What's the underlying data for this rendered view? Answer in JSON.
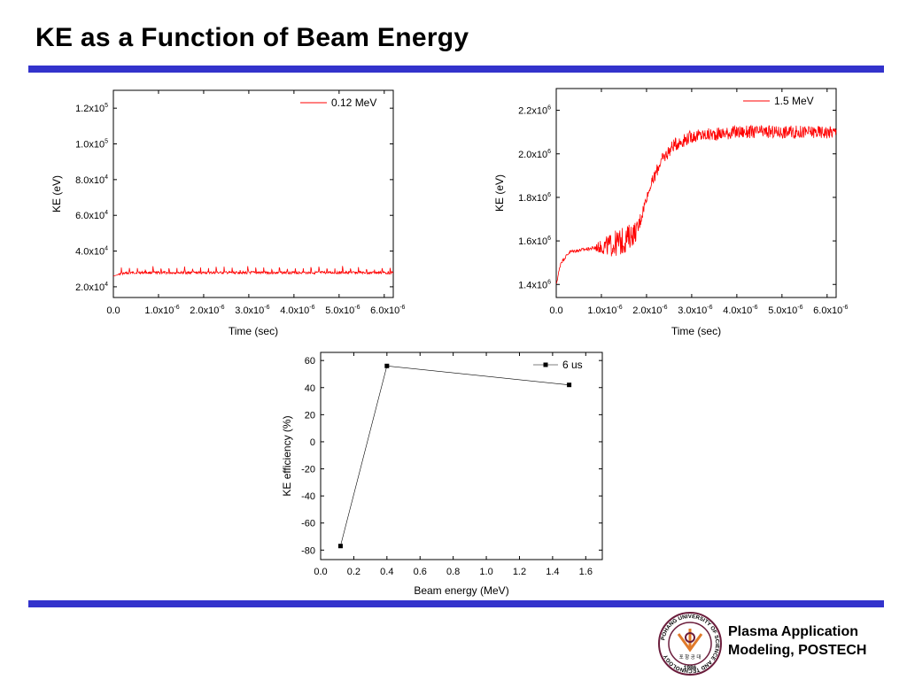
{
  "slide": {
    "title": "KE as a Function of Beam Energy",
    "rule_color": "#3333cc",
    "footer": {
      "line1": "Plasma Application",
      "line2": "Modeling, POSTECH"
    },
    "logo": {
      "ring_text": "POHANG UNIVERSITY OF SCIENCE AND TECHNOLOGY",
      "korean_text": "포 항 공 대",
      "year": "1986",
      "colors": {
        "ring": "#6b1d3c",
        "accent": "#e07a2a"
      }
    }
  },
  "chart_data": [
    {
      "type": "line",
      "xlabel": "Time (sec)",
      "ylabel": "KE (eV)",
      "xlim": [
        0,
        6.2e-06
      ],
      "ylim": [
        14000,
        130000
      ],
      "xticks": [
        {
          "value": 0,
          "mant": "0.0",
          "exp": ""
        },
        {
          "value": 1e-06,
          "mant": "1.0x10",
          "exp": "-6"
        },
        {
          "value": 2e-06,
          "mant": "2.0x10",
          "exp": "-6"
        },
        {
          "value": 3e-06,
          "mant": "3.0x10",
          "exp": "-6"
        },
        {
          "value": 4e-06,
          "mant": "4.0x10",
          "exp": "-6"
        },
        {
          "value": 5e-06,
          "mant": "5.0x10",
          "exp": "-6"
        },
        {
          "value": 6e-06,
          "mant": "6.0x10",
          "exp": "-6"
        }
      ],
      "yticks": [
        {
          "value": 20000,
          "mant": "2.0x10",
          "exp": "4"
        },
        {
          "value": 40000,
          "mant": "4.0x10",
          "exp": "4"
        },
        {
          "value": 60000,
          "mant": "6.0x10",
          "exp": "4"
        },
        {
          "value": 80000,
          "mant": "8.0x10",
          "exp": "4"
        },
        {
          "value": 100000,
          "mant": "1.0x10",
          "exp": "5"
        },
        {
          "value": 120000,
          "mant": "1.2x10",
          "exp": "5"
        }
      ],
      "legend_position": "top-right",
      "series": [
        {
          "name": "0.12 MeV",
          "color": "#ff0000",
          "x": [
            0,
            2e-07,
            4e-07,
            6e-07,
            8e-07,
            1e-06,
            1.5e-06,
            2e-06,
            2.5e-06,
            3e-06,
            3.5e-06,
            4e-06,
            4.5e-06,
            5e-06,
            5.5e-06,
            6e-06,
            6.2e-06
          ],
          "y": [
            26000,
            27500,
            28000,
            28000,
            28000,
            28000,
            28000,
            28000,
            28000,
            28000,
            28000,
            28000,
            28000,
            28000,
            28000,
            28000,
            28000
          ],
          "noise": "periodic spikes to ~31000 and dips to ~25500"
        }
      ]
    },
    {
      "type": "line",
      "xlabel": "Time (sec)",
      "ylabel": "KE (eV)",
      "xlim": [
        0,
        6.2e-06
      ],
      "ylim": [
        1340000,
        2300000
      ],
      "xticks": [
        {
          "value": 0,
          "mant": "0.0",
          "exp": ""
        },
        {
          "value": 1e-06,
          "mant": "1.0x10",
          "exp": "-6"
        },
        {
          "value": 2e-06,
          "mant": "2.0x10",
          "exp": "-6"
        },
        {
          "value": 3e-06,
          "mant": "3.0x10",
          "exp": "-6"
        },
        {
          "value": 4e-06,
          "mant": "4.0x10",
          "exp": "-6"
        },
        {
          "value": 5e-06,
          "mant": "5.0x10",
          "exp": "-6"
        },
        {
          "value": 6e-06,
          "mant": "6.0x10",
          "exp": "-6"
        }
      ],
      "yticks": [
        {
          "value": 1400000,
          "mant": "1.4x10",
          "exp": "6"
        },
        {
          "value": 1600000,
          "mant": "1.6x10",
          "exp": "6"
        },
        {
          "value": 1800000,
          "mant": "1.8x10",
          "exp": "6"
        },
        {
          "value": 2000000,
          "mant": "2.0x10",
          "exp": "6"
        },
        {
          "value": 2200000,
          "mant": "2.2x10",
          "exp": "6"
        }
      ],
      "legend_position": "top-right",
      "series": [
        {
          "name": "1.5 MeV",
          "color": "#ff0000",
          "x": [
            0,
            1e-07,
            3e-07,
            6e-07,
            9e-07,
            1.2e-06,
            1.5e-06,
            1.8e-06,
            2e-06,
            2.3e-06,
            2.6e-06,
            3e-06,
            3.5e-06,
            4e-06,
            4.5e-06,
            5e-06,
            5.5e-06,
            6.2e-06
          ],
          "y": [
            1400000,
            1500000,
            1550000,
            1560000,
            1570000,
            1580000,
            1600000,
            1650000,
            1800000,
            1960000,
            2040000,
            2080000,
            2090000,
            2100000,
            2100000,
            2100000,
            2100000,
            2100000
          ],
          "noise": "amplitude grows to ~60000 around 1.5e-6, ~30000 on the plateau"
        }
      ]
    },
    {
      "type": "line",
      "xlabel": "Beam energy (MeV)",
      "ylabel": "KE efficiency (%)",
      "xlim": [
        0,
        1.7
      ],
      "ylim": [
        -87,
        66
      ],
      "xticks": [
        "0.0",
        "0.2",
        "0.4",
        "0.6",
        "0.8",
        "1.0",
        "1.2",
        "1.4",
        "1.6"
      ],
      "yticks": [
        "60",
        "40",
        "20",
        "0",
        "-20",
        "-40",
        "-60",
        "-80"
      ],
      "legend_position": "top-right",
      "series": [
        {
          "name": "6 us",
          "color": "#000000",
          "marker": "square",
          "x": [
            0.12,
            0.4,
            1.5
          ],
          "y": [
            -77,
            56,
            42
          ]
        }
      ]
    }
  ]
}
